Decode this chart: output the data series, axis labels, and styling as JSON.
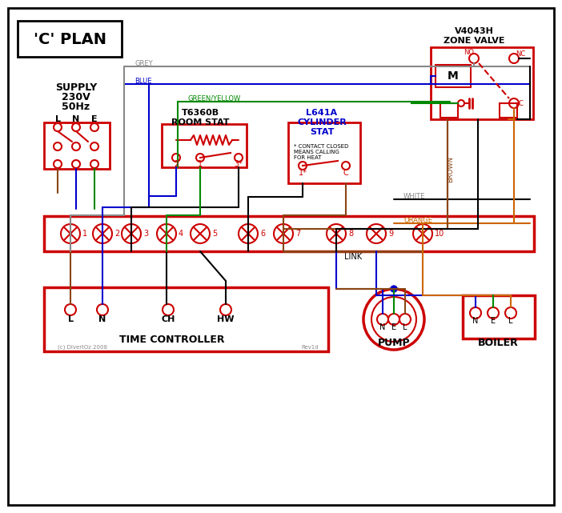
{
  "title": "'C' PLAN",
  "bg_color": "#ffffff",
  "border_color": "#000000",
  "red": "#cc0000",
  "blue": "#0000cc",
  "green": "#008800",
  "brown": "#8B4513",
  "grey": "#888888",
  "orange": "#cc6600",
  "black": "#000000",
  "time_ctrl_label": "TIME CONTROLLER",
  "pump_label": "PUMP",
  "boiler_label": "BOILER",
  "link_label": "LINK",
  "terminal_numbers": [
    "1",
    "2",
    "3",
    "4",
    "5",
    "6",
    "7",
    "8",
    "9",
    "10"
  ],
  "tc_terminals": [
    "L",
    "N",
    "CH",
    "HW"
  ]
}
